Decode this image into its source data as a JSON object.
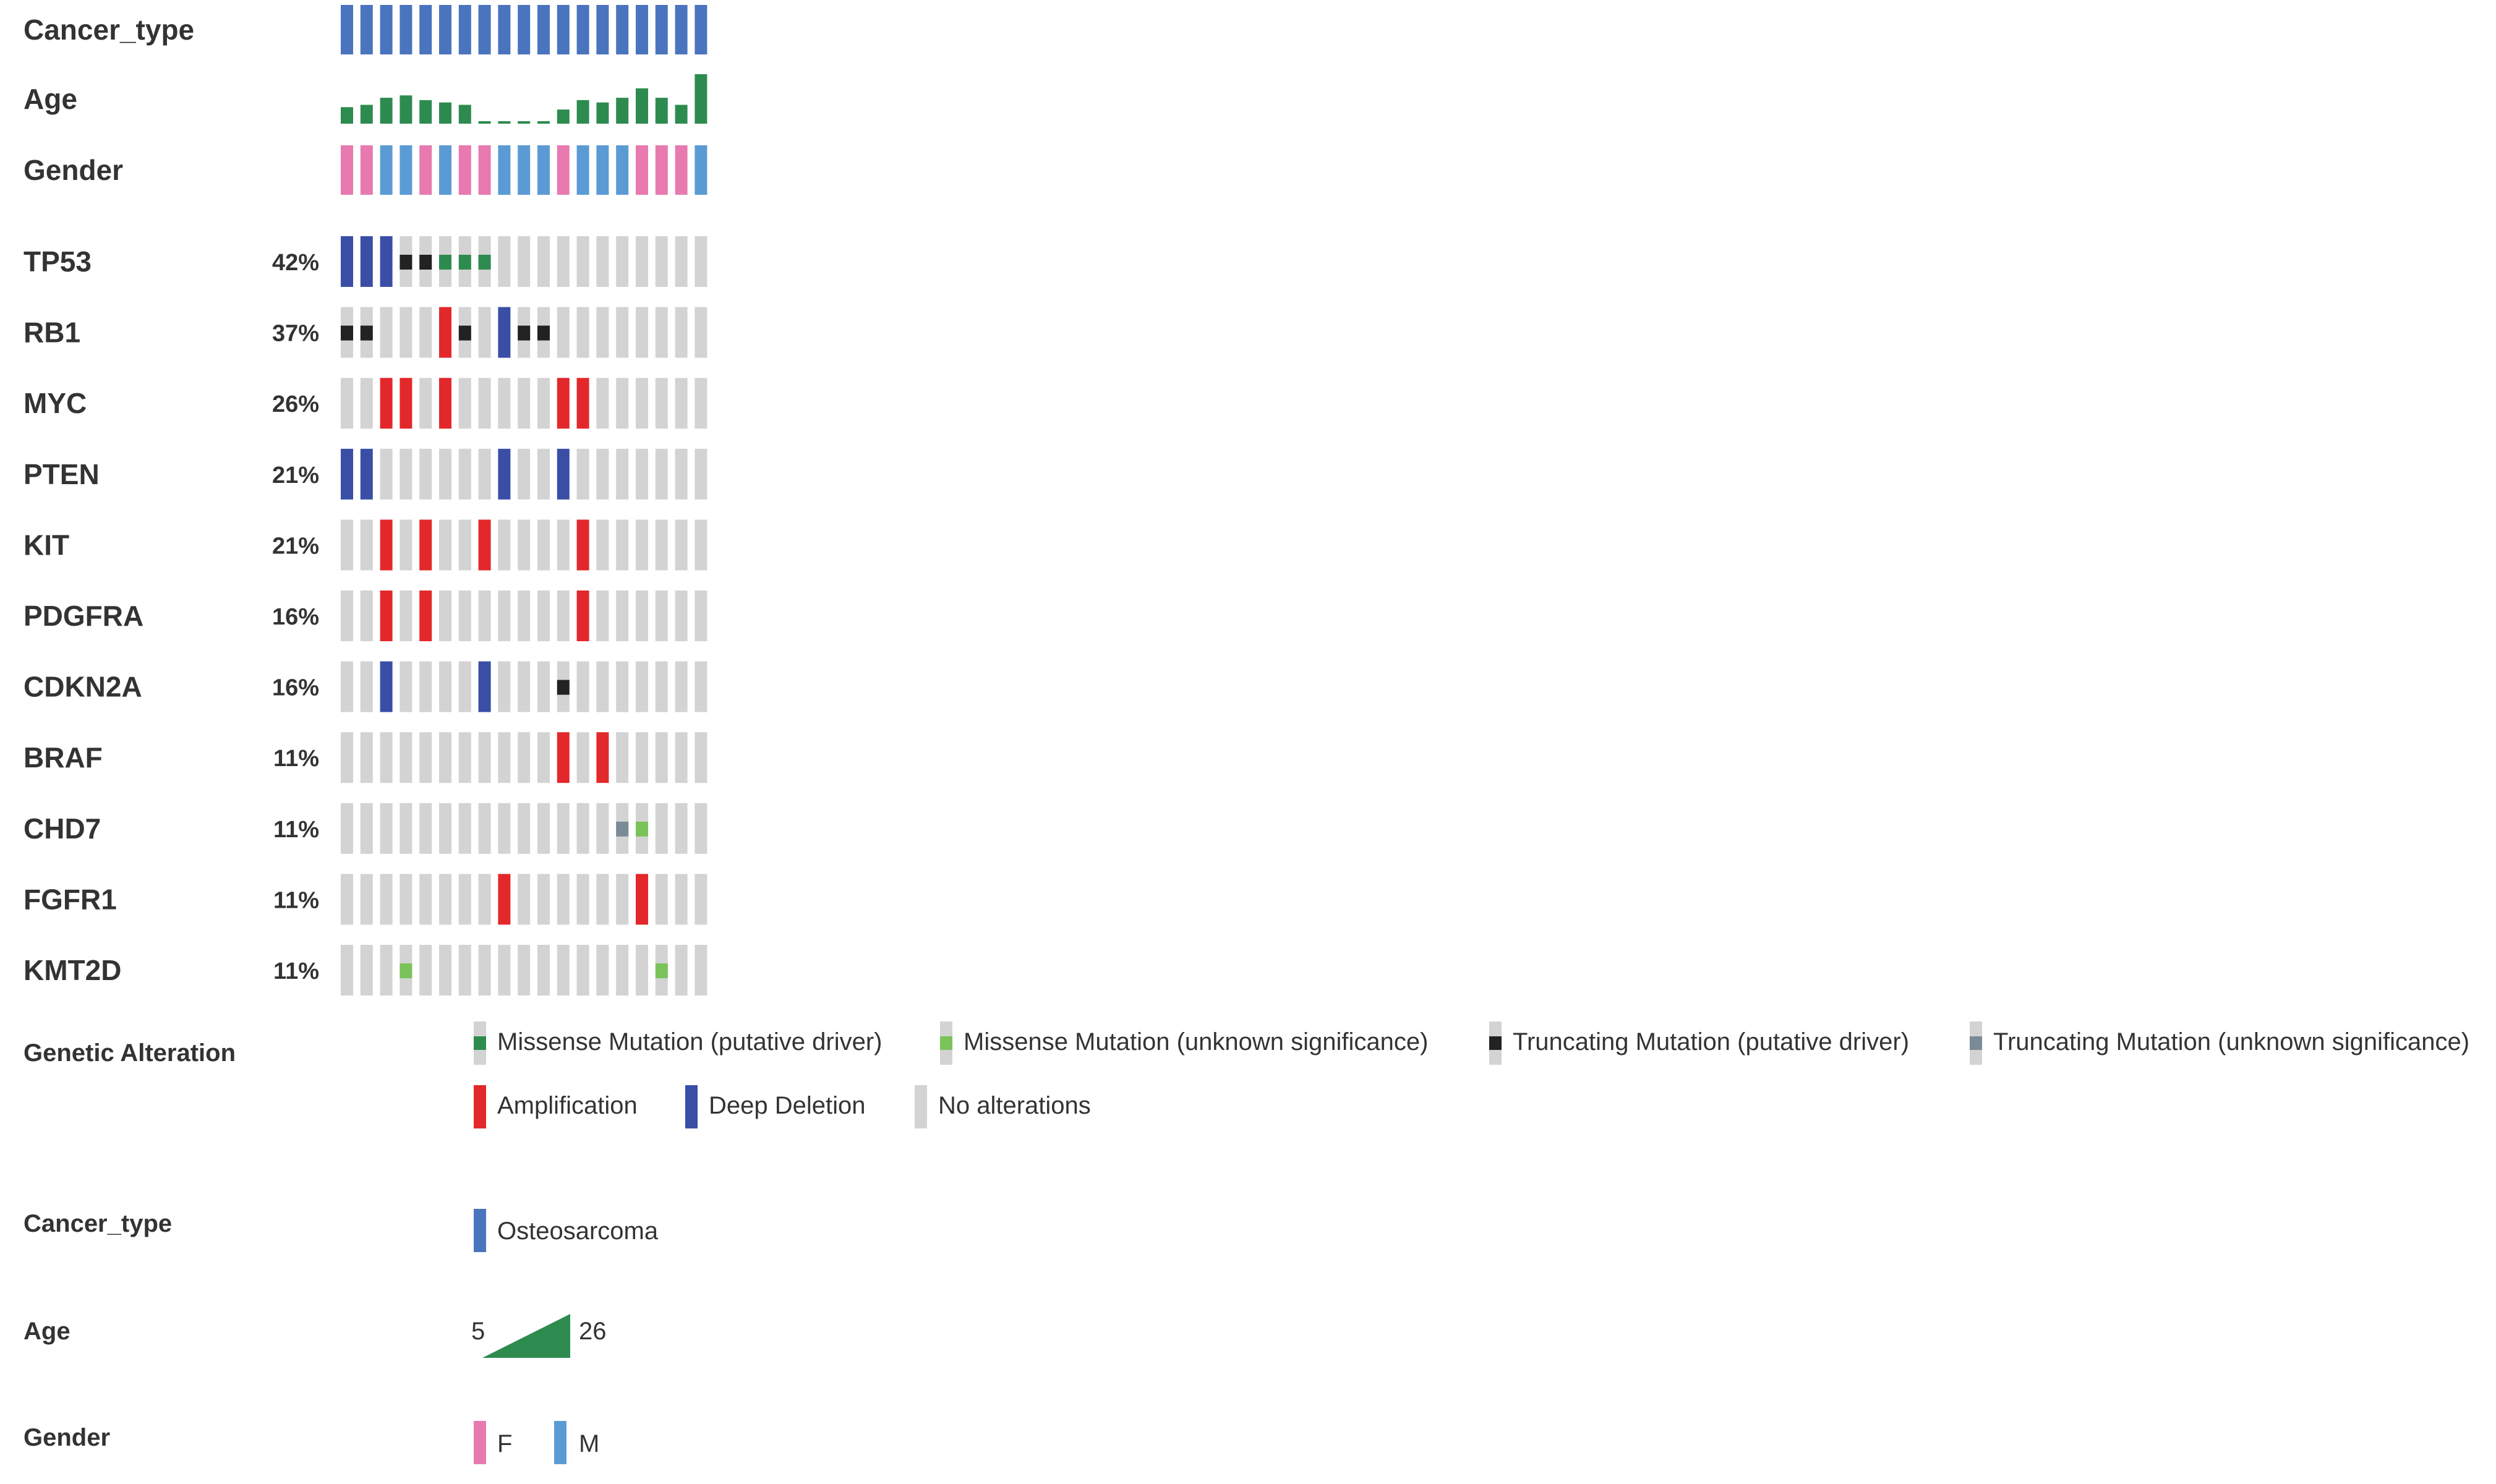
{
  "chart_data": {
    "type": "oncoprint",
    "n_samples": 19,
    "tracks": [
      {
        "name": "Cancer_type",
        "kind": "category",
        "values": [
          "Osteosarcoma",
          "Osteosarcoma",
          "Osteosarcoma",
          "Osteosarcoma",
          "Osteosarcoma",
          "Osteosarcoma",
          "Osteosarcoma",
          "Osteosarcoma",
          "Osteosarcoma",
          "Osteosarcoma",
          "Osteosarcoma",
          "Osteosarcoma",
          "Osteosarcoma",
          "Osteosarcoma",
          "Osteosarcoma",
          "Osteosarcoma",
          "Osteosarcoma",
          "Osteosarcoma",
          "Osteosarcoma"
        ]
      },
      {
        "name": "Age",
        "kind": "numeric",
        "values": [
          12,
          13,
          16,
          17,
          15,
          14,
          13,
          5,
          5,
          5,
          5,
          11,
          15,
          14,
          16,
          20,
          16,
          13,
          26
        ]
      },
      {
        "name": "Gender",
        "kind": "category",
        "values": [
          "F",
          "F",
          "M",
          "M",
          "F",
          "M",
          "F",
          "F",
          "M",
          "M",
          "M",
          "F",
          "M",
          "M",
          "M",
          "F",
          "F",
          "F",
          "M"
        ]
      }
    ],
    "genes": [
      {
        "name": "TP53",
        "pct": "42%",
        "alterations": [
          "deep_deletion",
          "deep_deletion",
          "deep_deletion",
          "truncating_driver",
          "truncating_driver",
          "missense_driver",
          "missense_driver",
          "missense_driver",
          null,
          null,
          null,
          null,
          null,
          null,
          null,
          null,
          null,
          null,
          null
        ]
      },
      {
        "name": "RB1",
        "pct": "37%",
        "alterations": [
          "truncating_driver",
          "truncating_driver",
          null,
          null,
          null,
          "amplification",
          "truncating_driver",
          null,
          "deep_deletion",
          "truncating_driver",
          "truncating_driver",
          null,
          null,
          null,
          null,
          null,
          null,
          null,
          null
        ]
      },
      {
        "name": "MYC",
        "pct": "26%",
        "alterations": [
          null,
          null,
          "amplification",
          "amplification",
          null,
          "amplification",
          null,
          null,
          null,
          null,
          null,
          "amplification",
          "amplification",
          null,
          null,
          null,
          null,
          null,
          null
        ]
      },
      {
        "name": "PTEN",
        "pct": "21%",
        "alterations": [
          "deep_deletion",
          "deep_deletion",
          null,
          null,
          null,
          null,
          null,
          null,
          "deep_deletion",
          null,
          null,
          "deep_deletion",
          null,
          null,
          null,
          null,
          null,
          null,
          null
        ]
      },
      {
        "name": "KIT",
        "pct": "21%",
        "alterations": [
          null,
          null,
          "amplification",
          null,
          "amplification",
          null,
          null,
          "amplification",
          null,
          null,
          null,
          null,
          "amplification",
          null,
          null,
          null,
          null,
          null,
          null
        ]
      },
      {
        "name": "PDGFRA",
        "pct": "16%",
        "alterations": [
          null,
          null,
          "amplification",
          null,
          "amplification",
          null,
          null,
          null,
          null,
          null,
          null,
          null,
          "amplification",
          null,
          null,
          null,
          null,
          null,
          null
        ]
      },
      {
        "name": "CDKN2A",
        "pct": "16%",
        "alterations": [
          null,
          null,
          "deep_deletion",
          null,
          null,
          null,
          null,
          "deep_deletion",
          null,
          null,
          null,
          "truncating_driver",
          null,
          null,
          null,
          null,
          null,
          null,
          null
        ]
      },
      {
        "name": "BRAF",
        "pct": "11%",
        "alterations": [
          null,
          null,
          null,
          null,
          null,
          null,
          null,
          null,
          null,
          null,
          null,
          "amplification",
          null,
          "amplification",
          null,
          null,
          null,
          null,
          null
        ]
      },
      {
        "name": "CHD7",
        "pct": "11%",
        "alterations": [
          null,
          null,
          null,
          null,
          null,
          null,
          null,
          null,
          null,
          null,
          null,
          null,
          null,
          null,
          "truncating_unknown",
          "missense_unknown",
          null,
          null,
          null
        ]
      },
      {
        "name": "FGFR1",
        "pct": "11%",
        "alterations": [
          null,
          null,
          null,
          null,
          null,
          null,
          null,
          null,
          "amplification",
          null,
          null,
          null,
          null,
          null,
          null,
          "amplification",
          null,
          null,
          null
        ]
      },
      {
        "name": "KMT2D",
        "pct": "11%",
        "alterations": [
          null,
          null,
          null,
          "missense_unknown",
          null,
          null,
          null,
          null,
          null,
          null,
          null,
          null,
          null,
          null,
          null,
          null,
          "missense_unknown",
          null,
          null
        ]
      }
    ],
    "legend": {
      "genetic_alteration_title": "Genetic Alteration",
      "alteration_items": [
        {
          "key": "missense_driver",
          "label": "Missense Mutation (putative driver)"
        },
        {
          "key": "missense_unknown",
          "label": "Missense Mutation (unknown significance)"
        },
        {
          "key": "truncating_driver",
          "label": "Truncating Mutation (putative driver)"
        },
        {
          "key": "truncating_unknown",
          "label": "Truncating Mutation (unknown significance)"
        },
        {
          "key": "amplification",
          "label": "Amplification"
        },
        {
          "key": "deep_deletion",
          "label": "Deep Deletion"
        },
        {
          "key": "none",
          "label": "No alterations"
        }
      ],
      "cancer_type_title": "Cancer_type",
      "cancer_type_items": [
        {
          "label": "Osteosarcoma"
        }
      ],
      "age_title": "Age",
      "age_min": "5",
      "age_max": "26",
      "gender_title": "Gender",
      "gender_items": [
        {
          "label": "F"
        },
        {
          "label": "M"
        }
      ]
    },
    "colors": {
      "cancer_type": "#4a74be",
      "age": "#2e8b4f",
      "gender_F": "#e87ab0",
      "gender_M": "#5b9bd5",
      "no_alteration": "#d3d3d3",
      "amplification": "#e3282b",
      "deep_deletion": "#3a4ea6",
      "missense_driver": "#2e8b4f",
      "missense_unknown": "#7ac35a",
      "truncating_driver": "#222222",
      "truncating_unknown": "#7a8a96"
    }
  }
}
